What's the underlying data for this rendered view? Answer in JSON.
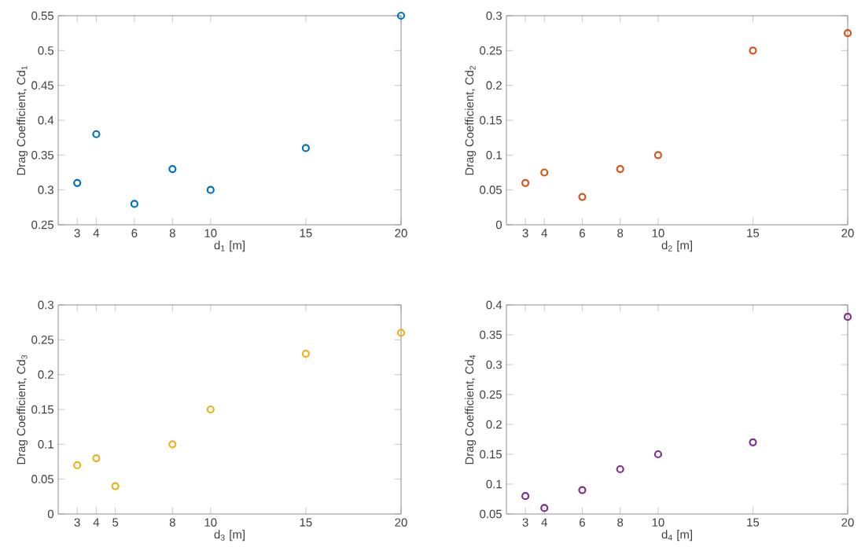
{
  "chart_data": [
    {
      "type": "scatter",
      "xlabel": "d$_{1}$ [m]",
      "ylabel": "Drag Coefficient, Cd$_{1}$",
      "marker": "circle",
      "x": [
        3,
        4,
        6,
        8,
        10,
        15,
        20
      ],
      "series": [
        {
          "color": "#0072bd",
          "values": [
            0.31,
            0.38,
            0.28,
            0.33,
            0.3,
            0.36,
            0.55
          ]
        }
      ],
      "xlim": [
        2,
        20
      ],
      "xticks": [
        3,
        4,
        6,
        8,
        10,
        15,
        20
      ],
      "ylim": [
        0.25,
        0.55
      ],
      "yticks": [
        0.25,
        0.3,
        0.35,
        0.4,
        0.45,
        0.5,
        0.55
      ]
    },
    {
      "type": "scatter",
      "xlabel": "d$_{2}$ [m]",
      "ylabel": "Drag Coefficient, Cd$_{2}$",
      "marker": "circle",
      "x": [
        3,
        4,
        6,
        8,
        10,
        15,
        20
      ],
      "series": [
        {
          "color": "#d95319",
          "values": [
            0.06,
            0.075,
            0.04,
            0.08,
            0.1,
            0.25,
            0.275
          ]
        }
      ],
      "xlim": [
        2,
        20
      ],
      "xticks": [
        3,
        4,
        6,
        8,
        10,
        15,
        20
      ],
      "ylim": [
        0,
        0.3
      ],
      "yticks": [
        0,
        0.05,
        0.1,
        0.15,
        0.2,
        0.25,
        0.3
      ]
    },
    {
      "type": "scatter",
      "xlabel": "d$_{3}$ [m]",
      "ylabel": "Drag Coefficient, Cd$_{3}$",
      "marker": "circle",
      "x": [
        3,
        4,
        5,
        8,
        10,
        15,
        20
      ],
      "series": [
        {
          "color": "#edb120",
          "values": [
            0.07,
            0.08,
            0.04,
            0.1,
            0.15,
            0.23,
            0.26
          ]
        }
      ],
      "xlim": [
        2,
        20
      ],
      "xticks": [
        3,
        4,
        5,
        8,
        10,
        15,
        20
      ],
      "ylim": [
        0,
        0.3
      ],
      "yticks": [
        0,
        0.05,
        0.1,
        0.15,
        0.2,
        0.25,
        0.3
      ]
    },
    {
      "type": "scatter",
      "xlabel": "d$_{4}$ [m]",
      "ylabel": "Drag Coefficient, Cd$_{4}$",
      "marker": "circle",
      "x": [
        3,
        4,
        6,
        8,
        10,
        15,
        20
      ],
      "series": [
        {
          "color": "#7e2f8e",
          "values": [
            0.08,
            0.06,
            0.09,
            0.125,
            0.15,
            0.17,
            0.38
          ]
        }
      ],
      "xlim": [
        2,
        20
      ],
      "xticks": [
        3,
        4,
        6,
        8,
        10,
        15,
        20
      ],
      "ylim": [
        0.05,
        0.4
      ],
      "yticks": [
        0.05,
        0.1,
        0.15,
        0.2,
        0.25,
        0.3,
        0.35,
        0.4
      ]
    }
  ]
}
